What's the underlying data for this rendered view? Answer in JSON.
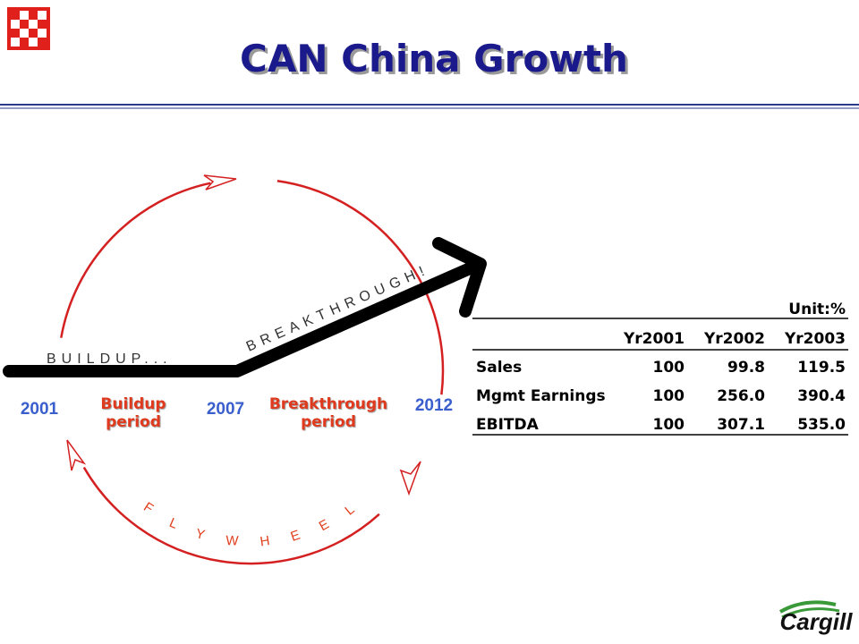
{
  "header": {
    "title": "CAN China Growth"
  },
  "diagram": {
    "buildup": "BUILDUP...",
    "breakthrough": "BREAKTHROUGH!",
    "flywheel": "FLYWHEEL",
    "years": [
      "2001",
      "2007",
      "2012"
    ],
    "periods": [
      "Buildup period",
      "Breakthrough period"
    ]
  },
  "table": {
    "unit": "Unit:%",
    "columns": [
      "Yr2001",
      "Yr2002",
      "Yr2003"
    ],
    "rows": [
      [
        "Sales",
        "100",
        "99.8",
        "119.5"
      ],
      [
        "Mgmt Earnings",
        "100",
        "256.0",
        "390.4"
      ],
      [
        "EBITDA",
        "100",
        "307.1",
        "535.0"
      ]
    ]
  },
  "footer": {
    "logo": "Cargill"
  }
}
